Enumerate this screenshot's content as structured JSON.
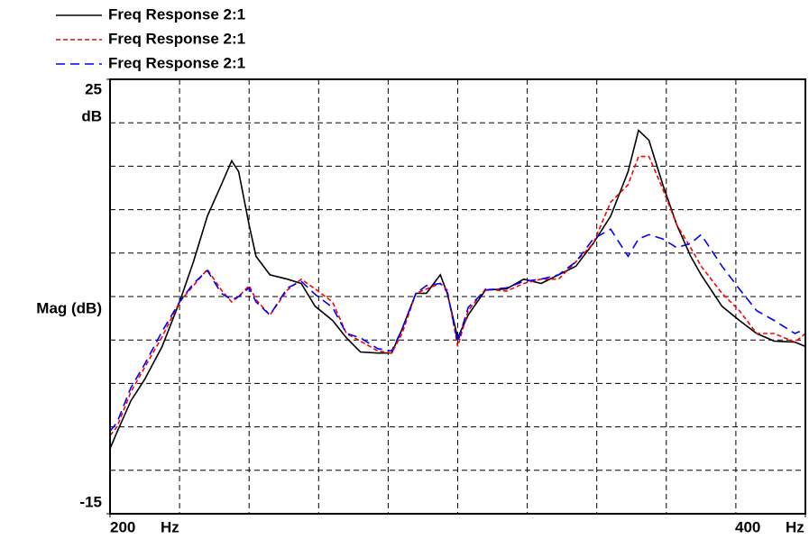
{
  "chart_data": {
    "type": "line",
    "ylabel": "Mag (dB)",
    "y_unit": "dB",
    "x_unit": "Hz",
    "xlim": [
      200,
      400
    ],
    "xticks": [
      200,
      400
    ],
    "ylim": [
      -15,
      25
    ],
    "yticks": [
      -15,
      25
    ],
    "xgrid": [
      220,
      240,
      260,
      280,
      300,
      320,
      340,
      360,
      380
    ],
    "ygrid": [
      -11,
      -7,
      -3,
      1,
      5,
      9,
      13,
      17,
      21
    ],
    "grid": true,
    "legend": "top-left",
    "x": [
      200,
      202,
      206,
      210,
      215,
      220,
      224,
      228,
      232,
      235,
      237,
      240,
      242,
      246,
      251,
      255,
      259,
      264,
      268,
      272,
      277,
      281,
      284,
      288,
      291,
      295,
      297,
      300,
      303,
      308,
      314,
      319,
      324,
      329,
      334,
      339,
      344,
      349,
      352,
      355,
      359,
      363,
      367,
      370,
      376,
      381,
      386,
      391,
      397,
      400
    ],
    "series": [
      {
        "name": "Freq Response 2:1",
        "color": "#000000",
        "dash": "none",
        "values": [
          -9.0,
          -7.5,
          -4.6,
          -2.6,
          0.4,
          4.5,
          8.2,
          12.4,
          15.3,
          17.5,
          16.5,
          11.6,
          8.7,
          7.0,
          6.6,
          6.2,
          4.1,
          2.8,
          1.2,
          -0.1,
          -0.2,
          -0.2,
          2.0,
          5.3,
          5.3,
          7.0,
          5.3,
          1.2,
          3.3,
          5.6,
          5.7,
          6.6,
          6.2,
          7.0,
          7.8,
          9.9,
          12.4,
          16.5,
          20.3,
          19.4,
          15.3,
          11.6,
          8.7,
          7.0,
          4.1,
          2.8,
          1.6,
          0.9,
          0.8,
          0.4
        ]
      },
      {
        "name": "Freq Response 2:1",
        "color": "#ff0000",
        "dash": "5,3",
        "values": [
          -7.8,
          -7.0,
          -3.8,
          -1.5,
          1.3,
          4.5,
          6.0,
          7.5,
          5.6,
          4.5,
          5.0,
          6.0,
          4.7,
          3.3,
          5.6,
          6.6,
          5.7,
          4.5,
          1.6,
          0.9,
          0.0,
          -0.2,
          1.6,
          5.3,
          5.7,
          6.2,
          5.6,
          0.4,
          3.7,
          5.7,
          5.5,
          6.2,
          6.6,
          6.6,
          8.2,
          9.9,
          13.7,
          15.3,
          17.9,
          17.9,
          14.9,
          11.6,
          9.5,
          7.8,
          5.3,
          3.7,
          1.6,
          1.6,
          0.8,
          1.6
        ]
      },
      {
        "name": "Freq Response 2:1",
        "color": "#0000ff",
        "dash": "10,6",
        "values": [
          -7.4,
          -6.6,
          -3.4,
          -1.2,
          1.8,
          4.5,
          6.2,
          7.4,
          5.3,
          4.7,
          5.0,
          5.8,
          4.5,
          3.3,
          5.8,
          6.4,
          5.2,
          4.0,
          1.6,
          1.2,
          0.2,
          0.0,
          2.0,
          5.3,
          6.0,
          6.2,
          5.4,
          0.8,
          4.0,
          5.6,
          5.8,
          6.4,
          6.6,
          7.0,
          8.2,
          10.3,
          11.2,
          8.7,
          10.3,
          10.7,
          10.3,
          9.5,
          9.9,
          10.7,
          7.8,
          5.7,
          3.7,
          2.8,
          1.6,
          2.0
        ]
      }
    ]
  }
}
